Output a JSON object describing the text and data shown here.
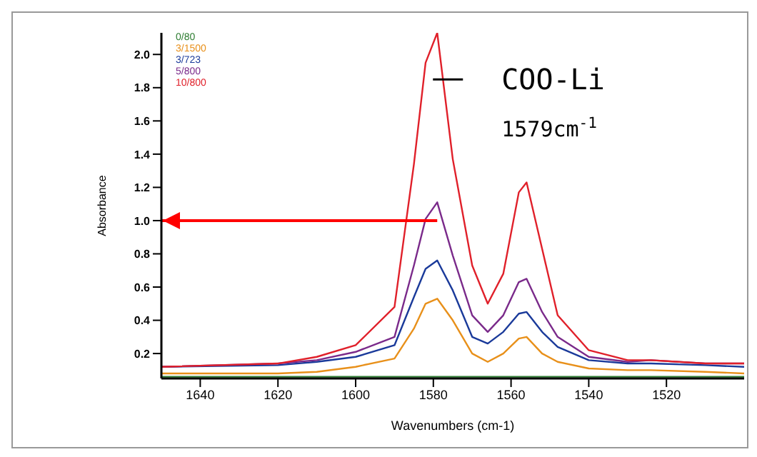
{
  "chart_data": {
    "type": "line",
    "xlabel": "Wavenumbers (cm-1)",
    "ylabel": "Absorbance",
    "x": [
      1650,
      1620,
      1610,
      1600,
      1590,
      1585,
      1582,
      1579,
      1575,
      1570,
      1566,
      1562,
      1558,
      1556,
      1552,
      1548,
      1540,
      1530,
      1524,
      1510,
      1500
    ],
    "series": [
      {
        "name": "0/80",
        "color": "#2e7d32",
        "values": [
          0.06,
          0.06,
          0.06,
          0.06,
          0.06,
          0.06,
          0.06,
          0.06,
          0.06,
          0.06,
          0.06,
          0.06,
          0.06,
          0.06,
          0.06,
          0.06,
          0.06,
          0.06,
          0.06,
          0.06,
          0.06
        ]
      },
      {
        "name": "3/1500",
        "color": "#e8901a",
        "values": [
          0.08,
          0.08,
          0.09,
          0.12,
          0.17,
          0.35,
          0.5,
          0.53,
          0.4,
          0.2,
          0.15,
          0.2,
          0.29,
          0.3,
          0.2,
          0.15,
          0.11,
          0.1,
          0.1,
          0.09,
          0.08
        ]
      },
      {
        "name": "3/723",
        "color": "#1a3a9a",
        "values": [
          0.12,
          0.13,
          0.15,
          0.18,
          0.25,
          0.54,
          0.71,
          0.76,
          0.58,
          0.3,
          0.26,
          0.33,
          0.44,
          0.45,
          0.33,
          0.24,
          0.16,
          0.14,
          0.14,
          0.13,
          0.12
        ]
      },
      {
        "name": "5/800",
        "color": "#7a2a8a",
        "values": [
          0.12,
          0.14,
          0.16,
          0.21,
          0.3,
          0.73,
          1.01,
          1.11,
          0.79,
          0.43,
          0.33,
          0.43,
          0.63,
          0.65,
          0.45,
          0.3,
          0.18,
          0.15,
          0.16,
          0.14,
          0.14
        ]
      },
      {
        "name": "10/800",
        "color": "#e0202a",
        "values": [
          0.12,
          0.14,
          0.18,
          0.25,
          0.48,
          1.34,
          1.95,
          2.13,
          1.37,
          0.73,
          0.5,
          0.68,
          1.17,
          1.23,
          0.83,
          0.43,
          0.22,
          0.16,
          0.16,
          0.14,
          0.14
        ]
      }
    ],
    "xlim": [
      1650,
      1500
    ],
    "xticks": [
      1640,
      1620,
      1600,
      1580,
      1560,
      1540,
      1520
    ],
    "ylim": [
      0.05,
      2.13
    ],
    "yticks": [
      0.2,
      0.4,
      0.6,
      0.8,
      {
        "value": 1,
        "label": "1.0"
      },
      1.2,
      1.4,
      1.6,
      1.8,
      {
        "value": 2,
        "label": "2.0"
      }
    ],
    "annotations": [
      {
        "text": "COO-Li",
        "x": 1579,
        "y": 1.85
      },
      "1579cm$^{-1}$"
    ],
    "ref_lines": [
      {
        "axis": "y",
        "value": 1.0,
        "color": "#ff0000"
      }
    ],
    "legend": "top left",
    "grid": false,
    "marker": "none",
    "line_style": "solid"
  }
}
